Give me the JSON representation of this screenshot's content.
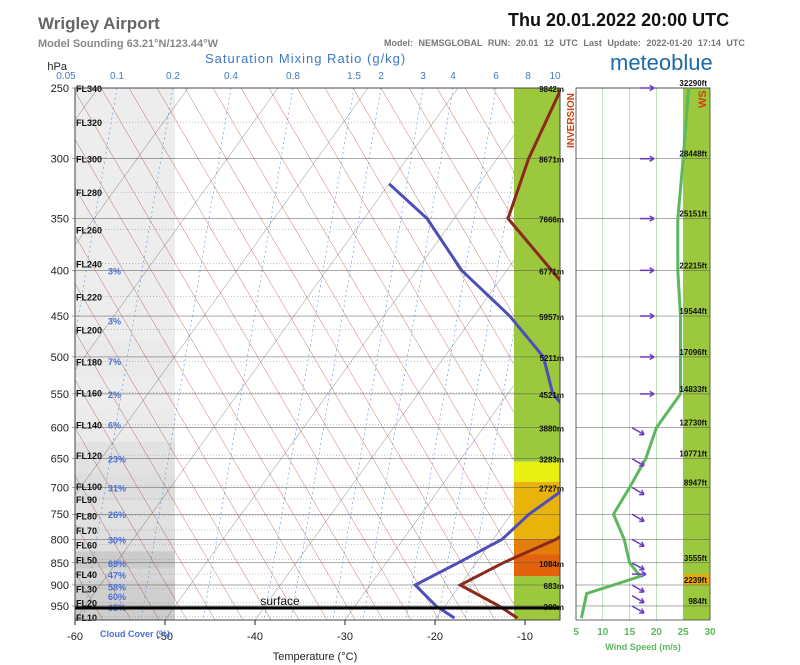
{
  "header": {
    "title": "Wrigley Airport",
    "subtitle": "Model Sounding  63.21°N/123.44°W",
    "datetime": "Thu 20.01.2022  20:00 UTC",
    "meta": "Model: NEMSGLOBAL   RUN: 20.01 12 UTC   Last Update: 2022-01-20 17:14 UTC",
    "brand": "meteoblue"
  },
  "chart_data": [
    {
      "type": "line",
      "name": "skew-t sounding",
      "title": "Saturation Mixing Ratio (g/kg)",
      "ylabel": "hPa",
      "xlabel": "Temperature (°C)",
      "pressure_ticks": [
        250,
        300,
        350,
        400,
        450,
        500,
        550,
        600,
        650,
        700,
        750,
        800,
        850,
        900,
        950
      ],
      "temperature_ticks": [
        -60,
        -50,
        -40,
        -30,
        -20,
        -10
      ],
      "mixing_ratio_labels": [
        "0.05",
        "0.1",
        "0.2",
        "0.4",
        "0.8",
        "1.5",
        "2",
        "3",
        "4",
        "6",
        "8",
        "10"
      ],
      "flight_levels": [
        {
          "label": "FL340",
          "p": 250
        },
        {
          "label": "FL320",
          "p": 273
        },
        {
          "label": "FL300",
          "p": 300
        },
        {
          "label": "FL280",
          "p": 327
        },
        {
          "label": "FL260",
          "p": 360
        },
        {
          "label": "FL240",
          "p": 393
        },
        {
          "label": "FL220",
          "p": 428
        },
        {
          "label": "FL200",
          "p": 466
        },
        {
          "label": "FL180",
          "p": 506
        },
        {
          "label": "FL160",
          "p": 548
        },
        {
          "label": "FL140",
          "p": 595
        },
        {
          "label": "FL120",
          "p": 644
        },
        {
          "label": "FL100",
          "p": 697
        },
        {
          "label": "FL90",
          "p": 721
        },
        {
          "label": "FL80",
          "p": 752
        },
        {
          "label": "FL70",
          "p": 781
        },
        {
          "label": "FL60",
          "p": 811
        },
        {
          "label": "FL50",
          "p": 843
        },
        {
          "label": "FL40",
          "p": 875
        },
        {
          "label": "FL30",
          "p": 908
        },
        {
          "label": "FL20",
          "p": 942
        },
        {
          "label": "FL10",
          "p": 977
        }
      ],
      "heights": [
        {
          "p": 250,
          "m": "9842m",
          "ft": "32290ft"
        },
        {
          "p": 300,
          "m": "8671m",
          "ft": "28448ft"
        },
        {
          "p": 350,
          "m": "7666m",
          "ft": "25151ft"
        },
        {
          "p": 400,
          "m": "6771m",
          "ft": "22215ft"
        },
        {
          "p": 450,
          "m": "5957m",
          "ft": "19544ft"
        },
        {
          "p": 500,
          "m": "5211m",
          "ft": "17096ft"
        },
        {
          "p": 550,
          "m": "4521m",
          "ft": "14833ft"
        },
        {
          "p": 600,
          "m": "3880m",
          "ft": "12730ft"
        },
        {
          "p": 650,
          "m": "3283m",
          "ft": "10771ft"
        },
        {
          "p": 700,
          "m": "2727m",
          "ft": "8947ft"
        },
        {
          "p": 850,
          "m": "1084m",
          "ft": "3555ft"
        },
        {
          "p": 900,
          "m": "683m",
          "ft": "2239ft"
        },
        {
          "p": 950,
          "m": "300m",
          "ft": "984ft"
        }
      ],
      "cloud_cover": {
        "label": "Cloud Cover (%)",
        "values": [
          {
            "p": 400,
            "v": "3%"
          },
          {
            "p": 455,
            "v": "3%"
          },
          {
            "p": 505,
            "v": "7%"
          },
          {
            "p": 550,
            "v": "2%"
          },
          {
            "p": 595,
            "v": "6%"
          },
          {
            "p": 650,
            "v": "23%"
          },
          {
            "p": 700,
            "v": "31%"
          },
          {
            "p": 750,
            "v": "26%"
          },
          {
            "p": 800,
            "v": "30%"
          },
          {
            "p": 850,
            "v": "69%"
          },
          {
            "p": 876,
            "v": "47%"
          },
          {
            "p": 903,
            "v": "58%"
          },
          {
            "p": 926,
            "v": "60%"
          },
          {
            "p": 953,
            "v": "65%"
          }
        ]
      },
      "surface": {
        "label": "surface",
        "p": 955
      },
      "series": [
        {
          "name": "Temperature",
          "color": "#8b2a1c",
          "points": [
            [
              -48.5,
              250
            ],
            [
              -46.5,
              300
            ],
            [
              -44,
              350
            ],
            [
              -35,
              400
            ],
            [
              -27,
              450
            ],
            [
              -20,
              500
            ],
            [
              -14,
              550
            ],
            [
              -8,
              600
            ],
            [
              -7,
              650
            ],
            [
              -7,
              700
            ],
            [
              -11,
              750
            ],
            [
              -13,
              800
            ],
            [
              -17,
              850
            ],
            [
              -20,
              900
            ],
            [
              -14,
              950
            ],
            [
              -11,
              980
            ]
          ]
        },
        {
          "name": "Dew point",
          "color": "#4e4ebb",
          "points": [
            [
              -60,
              320
            ],
            [
              -53,
              350
            ],
            [
              -45,
              400
            ],
            [
              -36,
              450
            ],
            [
              -29,
              500
            ],
            [
              -25,
              550
            ],
            [
              -19,
              600
            ],
            [
              -17,
              650
            ],
            [
              -16,
              700
            ],
            [
              -18,
              750
            ],
            [
              -19,
              800
            ],
            [
              -22,
              850
            ],
            [
              -25,
              900
            ],
            [
              -21,
              950
            ],
            [
              -18,
              980
            ]
          ]
        }
      ]
    },
    {
      "type": "line",
      "name": "wind profile",
      "xlabel": "Wind Speed (m/s)",
      "x_ticks": [
        5,
        10,
        15,
        20,
        25,
        30
      ],
      "inversion_label": "INVERSION",
      "ws_label": "WS",
      "stability_bands": [
        {
          "from": 250,
          "to": 655,
          "color": "#9bc83c"
        },
        {
          "from": 655,
          "to": 690,
          "color": "#e8ef12"
        },
        {
          "from": 690,
          "to": 800,
          "color": "#e8b40c"
        },
        {
          "from": 800,
          "to": 832,
          "color": "#e37d0c"
        },
        {
          "from": 832,
          "to": 880,
          "color": "#e3620c"
        },
        {
          "from": 880,
          "to": 985,
          "color": "#9bc83c"
        }
      ],
      "series": [
        {
          "name": "Wind speed",
          "color": "#5cb85c",
          "points": [
            [
              26,
              250
            ],
            [
              25,
              300
            ],
            [
              24,
              350
            ],
            [
              24,
              400
            ],
            [
              24.5,
              450
            ],
            [
              24.5,
              500
            ],
            [
              24.5,
              550
            ],
            [
              20,
              600
            ],
            [
              18,
              650
            ],
            [
              15,
              700
            ],
            [
              12,
              750
            ],
            [
              14,
              800
            ],
            [
              15,
              850
            ],
            [
              17,
              880
            ],
            [
              12,
              900
            ],
            [
              7,
              920
            ],
            [
              6,
              980
            ]
          ]
        }
      ],
      "wind_barbs": [
        {
          "p": 250,
          "dir": "E"
        },
        {
          "p": 300,
          "dir": "E"
        },
        {
          "p": 350,
          "dir": "E"
        },
        {
          "p": 400,
          "dir": "E"
        },
        {
          "p": 450,
          "dir": "E"
        },
        {
          "p": 500,
          "dir": "E"
        },
        {
          "p": 550,
          "dir": "E"
        },
        {
          "p": 600,
          "dir": "SE"
        },
        {
          "p": 650,
          "dir": "SE"
        },
        {
          "p": 700,
          "dir": "SE"
        },
        {
          "p": 750,
          "dir": "SE"
        },
        {
          "p": 800,
          "dir": "SE"
        },
        {
          "p": 850,
          "dir": "SE"
        },
        {
          "p": 875,
          "dir": "E"
        },
        {
          "p": 900,
          "dir": "SE"
        },
        {
          "p": 925,
          "dir": "SE"
        },
        {
          "p": 950,
          "dir": "SE"
        }
      ]
    }
  ]
}
